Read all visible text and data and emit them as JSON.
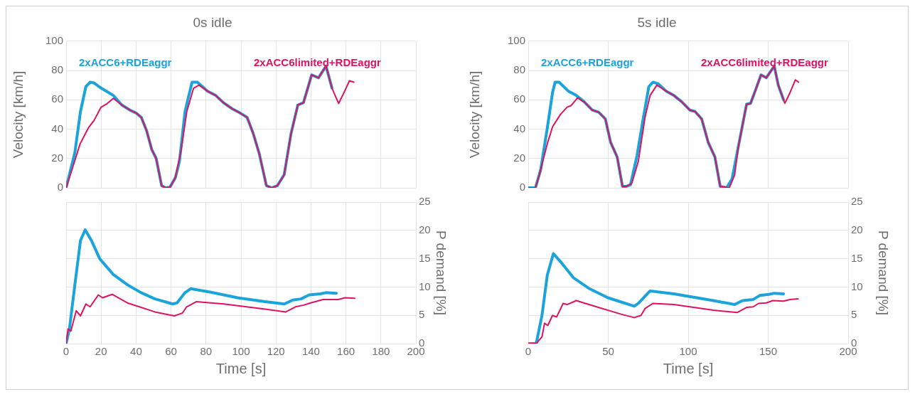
{
  "chart_data": [
    {
      "type": "line",
      "title": "0s idle",
      "ylabel": "Velocity [km/h]",
      "xlim": [
        0,
        200
      ],
      "xticks": [
        0,
        20,
        40,
        60,
        80,
        100,
        120,
        140,
        160,
        180,
        200
      ],
      "ylim": [
        0,
        100
      ],
      "yticks": [
        0,
        20,
        40,
        60,
        80,
        100
      ],
      "grid": true,
      "tick_labels": "y",
      "series": [
        {
          "name": "2xACC6+RDEaggr",
          "color": "#1ba3dc",
          "x": [
            0,
            5,
            8.2,
            11.3,
            13.7,
            16,
            20,
            27,
            31.8,
            36.5,
            40,
            43,
            46,
            49,
            51.5,
            54.6,
            57,
            59.4,
            62.5,
            64.8,
            68,
            72,
            75,
            78,
            80.7,
            85.5,
            90,
            94.8,
            99.5,
            103.5,
            107,
            110.5,
            114.5,
            117.6,
            120.8,
            124.7,
            128.6,
            132.5,
            135.7,
            140.4,
            144.3,
            148.6,
            152
          ],
          "values": [
            0,
            24,
            52,
            69,
            72,
            71.5,
            68,
            63,
            56.5,
            53,
            51,
            48,
            39,
            26,
            20,
            1.5,
            0,
            0.5,
            7,
            18,
            52,
            72,
            72,
            69,
            66,
            63,
            58,
            54,
            51,
            48,
            37,
            23,
            1.5,
            0,
            1.5,
            9,
            37,
            56.5,
            58,
            77,
            75,
            83,
            68
          ]
        },
        {
          "name": "2xACC6limited+RDEaggr",
          "color": "#e0125e",
          "x": [
            0,
            3.5,
            8,
            12.8,
            16,
            20,
            23,
            27,
            31.8,
            36.5,
            40,
            43,
            46,
            49,
            51.5,
            54.6,
            57,
            59.4,
            62.5,
            65.8,
            69,
            72.9,
            76,
            80.7,
            85.5,
            90,
            94.8,
            99.5,
            103.5,
            107,
            110.5,
            114.5,
            117.6,
            120.8,
            124.7,
            128.6,
            132.5,
            135.7,
            140.4,
            144.3,
            148.6,
            152,
            155.8,
            159.3,
            162,
            164.5
          ],
          "values": [
            0,
            13,
            30,
            41,
            46,
            55,
            57,
            61,
            56.5,
            53,
            51,
            48,
            39,
            26,
            20,
            1.5,
            0,
            0.5,
            7,
            26,
            52,
            68,
            70,
            66,
            63,
            58,
            54,
            51,
            48,
            37,
            23,
            1.5,
            0,
            1.5,
            9,
            37,
            56.5,
            58,
            77,
            75,
            83,
            68,
            57.5,
            66,
            73,
            72
          ]
        }
      ]
    },
    {
      "type": "line",
      "xlabel": "Time [s]",
      "y2label": "P demand [%]",
      "xlim": [
        0,
        200
      ],
      "xticks": [
        0,
        20,
        40,
        60,
        80,
        100,
        120,
        140,
        160,
        180,
        200
      ],
      "y2lim": [
        0,
        25
      ],
      "y2ticks": [
        0,
        5,
        10,
        15,
        20,
        25
      ],
      "grid": true,
      "series": [
        {
          "color": "#1ba3dc",
          "axis": "y2",
          "x": [
            0,
            1.9,
            5,
            8.2,
            10.9,
            14.5,
            19.2,
            27,
            35,
            42.9,
            50.8,
            61,
            63.4,
            68,
            71.2,
            82.3,
            98,
            113.8,
            124.8,
            129.5,
            134.3,
            139,
            145.3,
            148.5,
            154.5
          ],
          "values": [
            0,
            2.6,
            10.4,
            18.2,
            20.1,
            18.2,
            15,
            12.2,
            10.4,
            9,
            7.9,
            7,
            7.2,
            9,
            9.7,
            9.1,
            8.1,
            7.4,
            7,
            7.7,
            7.9,
            8.6,
            8.8,
            9,
            8.9
          ]
        },
        {
          "color": "#e0125e",
          "axis": "y2",
          "x": [
            0,
            1.1,
            2.7,
            5.8,
            8.2,
            11.3,
            13.7,
            18.4,
            20.8,
            26.3,
            35,
            50.8,
            61.8,
            66.5,
            68.9,
            74.4,
            90.2,
            113.8,
            125.6,
            131.1,
            135.8,
            139.8,
            146.9,
            155.6,
            159.5,
            165
          ],
          "values": [
            0,
            2.6,
            2.2,
            5.8,
            4.9,
            7,
            6.5,
            8.6,
            8.1,
            8.7,
            7.2,
            5.6,
            4.9,
            5.4,
            6.5,
            7.4,
            7,
            6.1,
            5.6,
            6.5,
            6.8,
            7.2,
            7.8,
            7.8,
            8.1,
            8
          ]
        }
      ]
    },
    {
      "type": "line",
      "title": "5s idle",
      "ylabel": "Velocity [km/h]",
      "xlim": [
        0,
        200
      ],
      "xticks": [
        0,
        50,
        100,
        150,
        200
      ],
      "ylim": [
        0,
        100
      ],
      "yticks": [
        0,
        20,
        40,
        60,
        80,
        100
      ],
      "grid": true,
      "tick_labels": "y",
      "series": [
        {
          "name": "2xACC6+RDEaggr",
          "color": "#1ba3dc",
          "x": [
            0,
            4.5,
            7.8,
            11.9,
            15.2,
            16.8,
            19.3,
            25,
            30,
            35,
            40,
            44,
            48.2,
            51.5,
            55.6,
            58.9,
            61.4,
            63.9,
            68,
            72,
            75.4,
            77.9,
            81.2,
            86.1,
            91,
            96,
            101,
            104.3,
            108.4,
            112.5,
            116.7,
            120,
            124,
            127.4,
            131.5,
            136.5,
            139,
            142.2,
            145.5,
            148.8,
            153.8,
            156.3,
            159.6
          ],
          "values": [
            0,
            0,
            12.4,
            40.7,
            65,
            72,
            72,
            66,
            63,
            58.6,
            53,
            51.6,
            47,
            31,
            21,
            1,
            1,
            2,
            22,
            48,
            69,
            72,
            71,
            66,
            63,
            58.6,
            53,
            52,
            47,
            31,
            21,
            1,
            0,
            6,
            29,
            57,
            57.6,
            67,
            77,
            75,
            83,
            70,
            60
          ]
        },
        {
          "name": "2xACC6limited+RDEaggr",
          "color": "#e0125e",
          "x": [
            0,
            4.5,
            6.9,
            11.9,
            15.2,
            20.1,
            24.3,
            26.7,
            30.9,
            33.3,
            35,
            40,
            44,
            48.2,
            51.5,
            55.6,
            58.9,
            61.4,
            64.7,
            68.8,
            73,
            76.2,
            80.4,
            86.1,
            91,
            96,
            101,
            104.3,
            108.4,
            112.5,
            116.7,
            120,
            125.7,
            129,
            131.5,
            136.5,
            139,
            142.2,
            145.5,
            148.8,
            153.8,
            156.3,
            160.4,
            163.7,
            167,
            169
          ],
          "values": [
            0,
            0,
            8.7,
            30,
            41.6,
            50,
            55,
            56,
            61.4,
            59.5,
            58.6,
            53,
            51.6,
            47,
            31,
            21,
            1,
            1,
            3,
            18,
            48,
            63,
            70,
            66,
            63,
            58.6,
            53,
            52,
            47,
            31,
            21,
            1,
            0,
            8.7,
            29,
            57,
            57.6,
            67,
            77,
            75,
            83,
            70,
            57.6,
            65,
            73.6,
            72
          ]
        }
      ]
    },
    {
      "type": "line",
      "xlabel": "Time [s]",
      "y2label": "P demand [%]",
      "xlim": [
        0,
        200
      ],
      "xticks": [
        0,
        50,
        100,
        150,
        200
      ],
      "y2lim": [
        0,
        25
      ],
      "y2ticks": [
        0,
        5,
        10,
        15,
        20,
        25
      ],
      "grid": true,
      "series": [
        {
          "color": "#1ba3dc",
          "axis": "y2",
          "x": [
            0,
            5,
            8.6,
            11.9,
            15.7,
            20.1,
            28.4,
            38.3,
            49.8,
            66.3,
            68.8,
            76.2,
            91,
            115.8,
            129,
            134,
            140.6,
            144.7,
            150.5,
            153.8,
            159.6
          ],
          "values": [
            0,
            0,
            5,
            12.1,
            15.9,
            14.5,
            11.6,
            9.7,
            8.1,
            6.6,
            7.1,
            9.3,
            8.8,
            7.6,
            6.9,
            7.6,
            7.8,
            8.5,
            8.7,
            8.9,
            8.8
          ]
        },
        {
          "color": "#e0125e",
          "axis": "y2",
          "x": [
            0,
            5.3,
            8.6,
            10.2,
            12.2,
            15.2,
            17.7,
            21.8,
            24.3,
            30,
            41.6,
            58.1,
            66.3,
            70.5,
            73,
            77.9,
            91,
            115.8,
            130.7,
            136.5,
            140.6,
            143.9,
            148.8,
            152.9,
            159.6,
            163.7,
            168.6
          ],
          "values": [
            0,
            0.1,
            1.2,
            3.6,
            3.2,
            5,
            4.7,
            7.1,
            6.9,
            7.6,
            6.6,
            5.2,
            4.6,
            5,
            6.2,
            7.1,
            6.9,
            5.9,
            5.5,
            6.4,
            6.5,
            7.1,
            7.2,
            7.6,
            7.5,
            7.8,
            7.9
          ]
        }
      ]
    }
  ]
}
